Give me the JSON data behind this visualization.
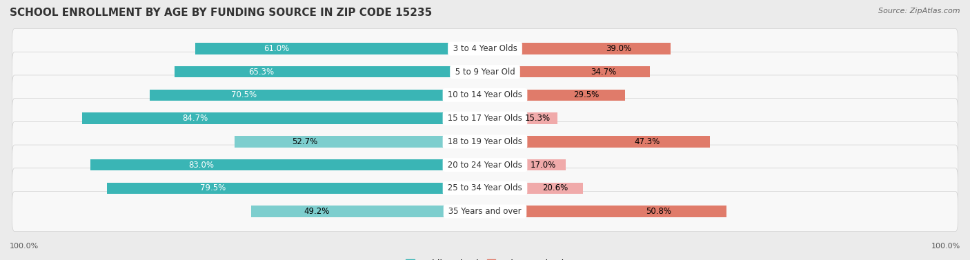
{
  "title": "SCHOOL ENROLLMENT BY AGE BY FUNDING SOURCE IN ZIP CODE 15235",
  "source": "Source: ZipAtlas.com",
  "categories": [
    "3 to 4 Year Olds",
    "5 to 9 Year Old",
    "10 to 14 Year Olds",
    "15 to 17 Year Olds",
    "18 to 19 Year Olds",
    "20 to 24 Year Olds",
    "25 to 34 Year Olds",
    "35 Years and over"
  ],
  "public_values": [
    61.0,
    65.3,
    70.5,
    84.7,
    52.7,
    83.0,
    79.5,
    49.2
  ],
  "private_values": [
    39.0,
    34.7,
    29.5,
    15.3,
    47.3,
    17.0,
    20.6,
    50.8
  ],
  "public_colors": [
    "#3ab5b5",
    "#3ab5b5",
    "#3ab5b5",
    "#3ab5b5",
    "#7dcece",
    "#3ab5b5",
    "#3ab5b5",
    "#7dcece"
  ],
  "private_colors": [
    "#e07b6a",
    "#e07b6a",
    "#e07b6a",
    "#f0aaaa",
    "#e07b6a",
    "#f0aaaa",
    "#f0aaaa",
    "#e07b6a"
  ],
  "public_label_colors": [
    "white",
    "white",
    "white",
    "white",
    "black",
    "white",
    "white",
    "black"
  ],
  "private_label_colors": [
    "black",
    "black",
    "black",
    "black",
    "black",
    "black",
    "black",
    "black"
  ],
  "background_color": "#ebebeb",
  "row_bg_color": "#f8f8f8",
  "row_border_color": "#d0d0d0",
  "title_fontsize": 11,
  "label_fontsize": 8.5,
  "legend_fontsize": 9,
  "source_fontsize": 8,
  "axis_label_fontsize": 8,
  "cat_label_fontsize": 8.5,
  "total_width": 100
}
